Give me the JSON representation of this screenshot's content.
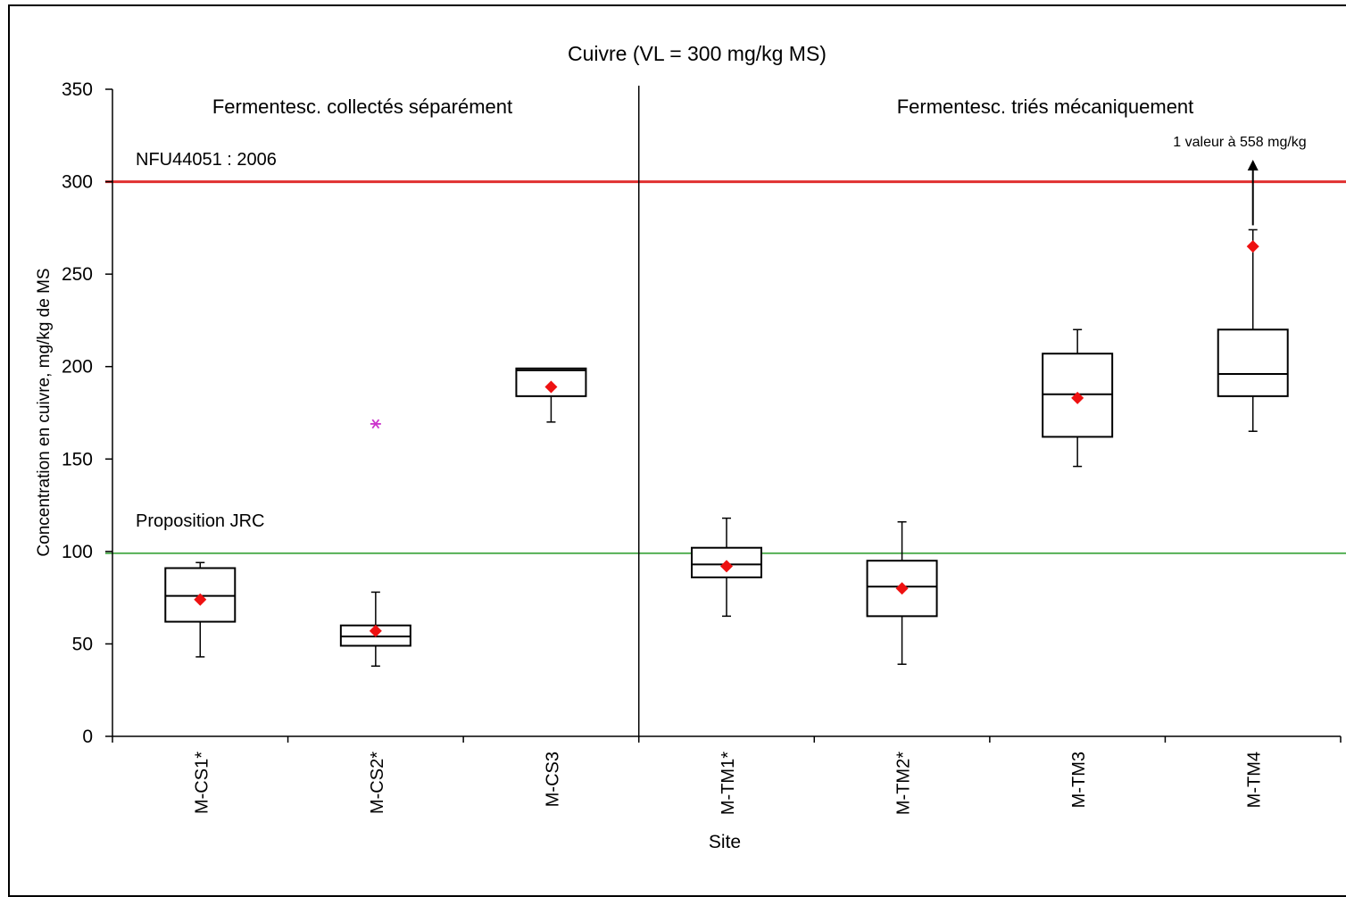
{
  "chart_data": {
    "type": "box",
    "title": "Cuivre (VL = 300 mg/kg MS)",
    "xlabel": "Site",
    "ylabel": "Concentration en cuivre, mg/kg de MS",
    "ylim": [
      0,
      350
    ],
    "yticks": [
      "0",
      "50",
      "100",
      "150",
      "200",
      "250",
      "300",
      "350"
    ],
    "ytick_values": [
      0,
      50,
      100,
      150,
      200,
      250,
      300,
      350
    ],
    "grid": false,
    "groups": [
      {
        "label": "Fermentesc. collectés séparément",
        "categories": [
          "M-CS1*",
          "M-CS2*",
          "M-CS3"
        ]
      },
      {
        "label": "Fermentesc. triés mécaniquement",
        "categories": [
          "M-TM1*",
          "M-TM2*",
          "M-TM3",
          "M-TM4"
        ]
      }
    ],
    "categories": [
      "M-CS1*",
      "M-CS2*",
      "M-CS3",
      "M-TM1*",
      "M-TM2*",
      "M-TM3",
      "M-TM4"
    ],
    "boxes": [
      {
        "category": "M-CS1*",
        "min": 43,
        "q1": 62,
        "median": 76,
        "q3": 91,
        "max": 94,
        "mean": 74
      },
      {
        "category": "M-CS2*",
        "min": 38,
        "q1": 49,
        "median": 54,
        "q3": 60,
        "max": 78,
        "mean": 57
      },
      {
        "category": "M-CS3",
        "min": 170,
        "q1": 184,
        "median": 198,
        "q3": 199,
        "max": 199,
        "mean": 189
      },
      {
        "category": "M-TM1*",
        "min": 65,
        "q1": 86,
        "median": 93,
        "q3": 102,
        "max": 118,
        "mean": 92
      },
      {
        "category": "M-TM2*",
        "min": 39,
        "q1": 65,
        "median": 81,
        "q3": 95,
        "max": 116,
        "mean": 80
      },
      {
        "category": "M-TM3",
        "min": 146,
        "q1": 162,
        "median": 185,
        "q3": 207,
        "max": 220,
        "mean": 183
      },
      {
        "category": "M-TM4",
        "min": 165,
        "q1": 184,
        "median": 196,
        "q3": 220,
        "max": 274,
        "mean": 265
      }
    ],
    "single_points": [
      {
        "category": "M-CS2*",
        "value": 169,
        "marker": "asterisk",
        "color": "#cc33cc"
      }
    ],
    "reference_lines": [
      {
        "label": "NFU44051 : 2006",
        "value": 300,
        "color": "#e03030"
      },
      {
        "label": "Proposition JRC",
        "value": 99,
        "color": "#55b055"
      }
    ],
    "annotation": {
      "text": "1 valeur à 558 mg/kg",
      "category": "M-TM4"
    },
    "colors": {
      "mean_marker": "#ee1111",
      "box_stroke": "#000000"
    }
  }
}
